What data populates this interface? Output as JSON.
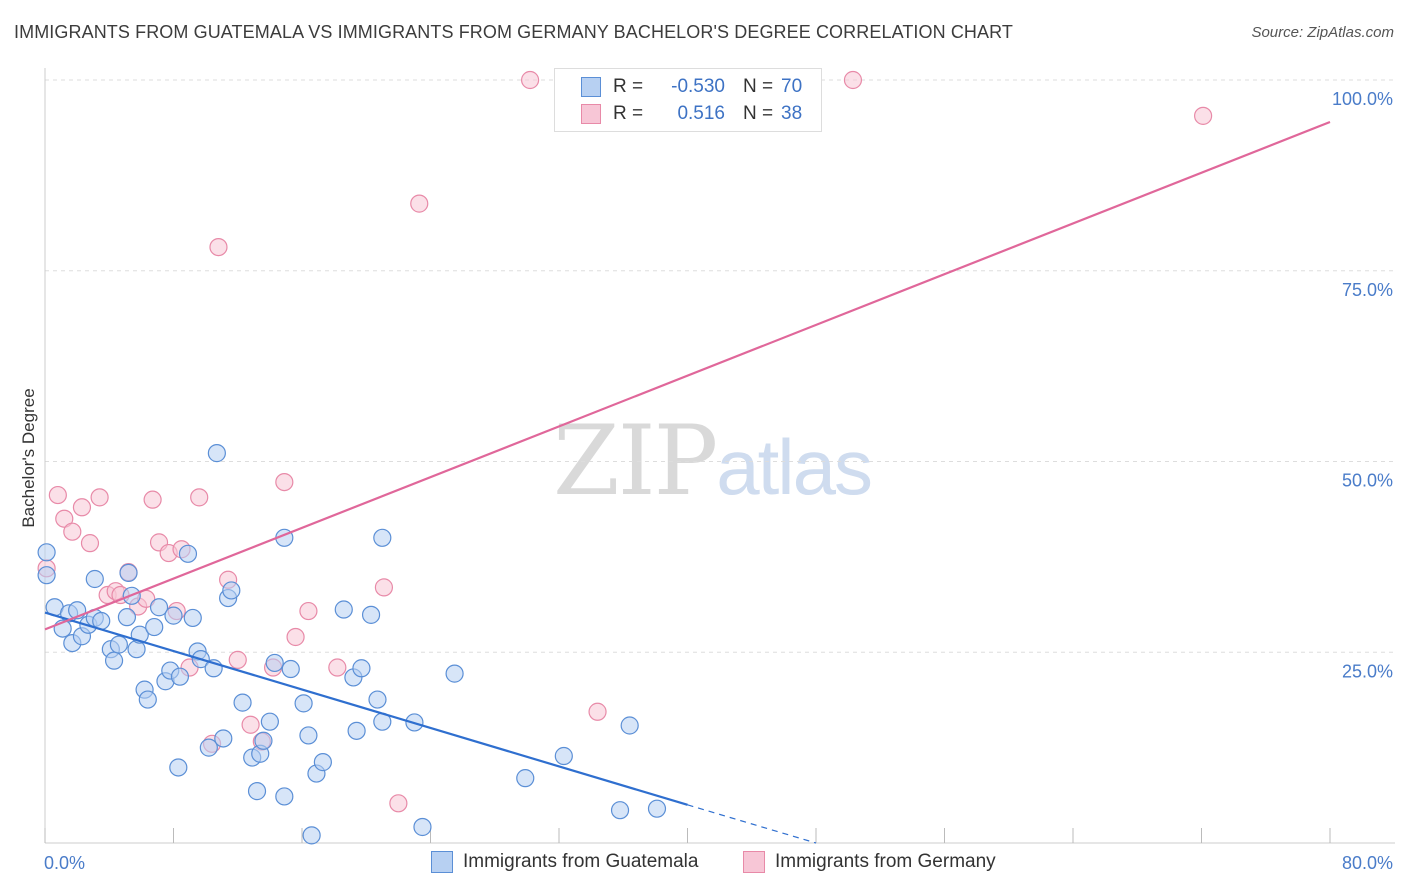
{
  "title": "IMMIGRANTS FROM GUATEMALA VS IMMIGRANTS FROM GERMANY BACHELOR'S DEGREE CORRELATION CHART",
  "source": "Source: ZipAtlas.com",
  "watermark": {
    "zip": "ZIP",
    "atlas": "atlas"
  },
  "legend_box": {
    "rows": [
      {
        "r_label": "R =",
        "r_value": "-0.530",
        "n_label": "N =",
        "n_value": "70"
      },
      {
        "r_label": "R =",
        "r_value": "0.516",
        "n_label": "N =",
        "n_value": "38"
      }
    ]
  },
  "bottom_legend": [
    {
      "label": "Immigrants from Guatemala"
    },
    {
      "label": "Immigrants from Germany"
    }
  ],
  "colors": {
    "guatemala_fill": "#b7d0f2",
    "guatemala_stroke": "#5b8fd6",
    "guatemala_line": "#2f6fcf",
    "germany_fill": "#f7c6d6",
    "germany_stroke": "#e88aa8",
    "germany_line": "#e0679a",
    "tick_text": "#4a7cc9",
    "grid": "#dddddd"
  },
  "chart_data": {
    "type": "scatter",
    "ylabel": "Bachelor's Degree",
    "xlim": [
      0,
      80
    ],
    "ylim": [
      0,
      100
    ],
    "x_ticks": [
      "0.0%",
      "80.0%"
    ],
    "y_ticks": [
      {
        "value": 25,
        "label": "25.0%"
      },
      {
        "value": 50,
        "label": "50.0%"
      },
      {
        "value": 75,
        "label": "75.0%"
      },
      {
        "value": 100,
        "label": "100.0%"
      }
    ],
    "series": [
      {
        "name": "Immigrants from Guatemala",
        "points": [
          [
            0.1,
            38.1
          ],
          [
            0.1,
            35.1
          ],
          [
            0.6,
            30.9
          ],
          [
            1.1,
            28.1
          ],
          [
            1.5,
            30.1
          ],
          [
            1.7,
            26.2
          ],
          [
            2.0,
            30.5
          ],
          [
            2.3,
            27.1
          ],
          [
            2.7,
            28.6
          ],
          [
            3.1,
            29.5
          ],
          [
            3.1,
            34.6
          ],
          [
            3.5,
            29.1
          ],
          [
            4.1,
            25.4
          ],
          [
            4.3,
            23.9
          ],
          [
            4.6,
            26.0
          ],
          [
            5.1,
            29.6
          ],
          [
            5.2,
            35.4
          ],
          [
            5.4,
            32.4
          ],
          [
            5.7,
            25.4
          ],
          [
            5.9,
            27.3
          ],
          [
            6.2,
            20.1
          ],
          [
            6.4,
            18.8
          ],
          [
            6.8,
            28.3
          ],
          [
            7.1,
            30.9
          ],
          [
            7.5,
            21.2
          ],
          [
            7.8,
            22.6
          ],
          [
            8.0,
            29.8
          ],
          [
            8.3,
            9.9
          ],
          [
            8.4,
            21.8
          ],
          [
            8.9,
            37.9
          ],
          [
            9.2,
            29.5
          ],
          [
            9.5,
            25.1
          ],
          [
            9.7,
            24.1
          ],
          [
            10.2,
            12.5
          ],
          [
            10.5,
            22.9
          ],
          [
            10.7,
            51.1
          ],
          [
            11.1,
            13.7
          ],
          [
            11.4,
            32.1
          ],
          [
            11.6,
            33.1
          ],
          [
            12.3,
            18.4
          ],
          [
            12.9,
            11.2
          ],
          [
            13.2,
            6.8
          ],
          [
            13.4,
            11.7
          ],
          [
            13.6,
            13.4
          ],
          [
            14.0,
            15.9
          ],
          [
            14.3,
            23.6
          ],
          [
            14.9,
            6.1
          ],
          [
            14.9,
            40.0
          ],
          [
            15.3,
            22.8
          ],
          [
            16.1,
            18.3
          ],
          [
            16.4,
            14.1
          ],
          [
            16.6,
            1.0
          ],
          [
            16.9,
            9.1
          ],
          [
            17.3,
            10.6
          ],
          [
            18.6,
            30.6
          ],
          [
            19.2,
            21.7
          ],
          [
            19.4,
            14.7
          ],
          [
            19.7,
            22.9
          ],
          [
            20.3,
            29.9
          ],
          [
            20.7,
            18.8
          ],
          [
            21.0,
            15.9
          ],
          [
            21.0,
            40.0
          ],
          [
            23.0,
            15.8
          ],
          [
            23.5,
            2.1
          ],
          [
            25.5,
            22.2
          ],
          [
            29.9,
            8.5
          ],
          [
            32.3,
            11.4
          ],
          [
            35.8,
            4.3
          ],
          [
            36.4,
            15.4
          ],
          [
            38.1,
            4.5
          ]
        ],
        "trend": {
          "x0": 0,
          "y0": 30.2,
          "x1": 40,
          "y1": 5.0,
          "dash_to_x": 48,
          "dash_to_y": 0
        }
      },
      {
        "name": "Immigrants from Germany",
        "points": [
          [
            0.1,
            36.0
          ],
          [
            0.8,
            45.6
          ],
          [
            1.2,
            42.5
          ],
          [
            1.7,
            40.8
          ],
          [
            2.3,
            44.0
          ],
          [
            2.8,
            39.3
          ],
          [
            3.4,
            45.3
          ],
          [
            3.9,
            32.5
          ],
          [
            4.4,
            33.0
          ],
          [
            4.7,
            32.5
          ],
          [
            5.2,
            35.5
          ],
          [
            5.8,
            31.0
          ],
          [
            6.3,
            32.0
          ],
          [
            6.7,
            45.0
          ],
          [
            7.1,
            39.4
          ],
          [
            7.7,
            38.0
          ],
          [
            8.2,
            30.4
          ],
          [
            8.5,
            38.5
          ],
          [
            9.0,
            23.0
          ],
          [
            9.6,
            45.3
          ],
          [
            10.4,
            13.0
          ],
          [
            10.8,
            78.1
          ],
          [
            11.4,
            34.5
          ],
          [
            12.0,
            24.0
          ],
          [
            12.8,
            15.5
          ],
          [
            13.5,
            13.3
          ],
          [
            14.2,
            23.0
          ],
          [
            14.9,
            47.3
          ],
          [
            15.6,
            27.0
          ],
          [
            16.4,
            30.4
          ],
          [
            18.2,
            23.0
          ],
          [
            21.1,
            33.5
          ],
          [
            22.0,
            5.2
          ],
          [
            23.3,
            83.8
          ],
          [
            30.2,
            100.0
          ],
          [
            34.4,
            17.2
          ],
          [
            50.3,
            100.0
          ],
          [
            72.1,
            95.3
          ]
        ],
        "trend": {
          "x0": 0,
          "y0": 28.0,
          "x1": 80,
          "y1": 94.5
        }
      }
    ]
  }
}
